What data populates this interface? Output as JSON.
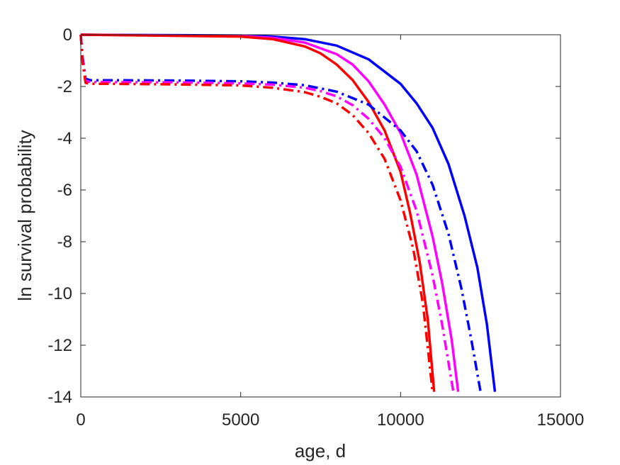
{
  "chart_data": {
    "type": "line",
    "title": "",
    "xlabel": "age, d",
    "ylabel": "ln survival probability",
    "xlim": [
      0,
      15000
    ],
    "ylim": [
      -14,
      0
    ],
    "xticks": [
      0,
      5000,
      10000,
      15000
    ],
    "yticks": [
      -14,
      -12,
      -10,
      -8,
      -6,
      -4,
      -2,
      0
    ],
    "grid": false,
    "legend": false,
    "series": [
      {
        "color": "#0000ff",
        "style": "solid",
        "x": [
          0,
          5000,
          6000,
          7000,
          8000,
          9000,
          10000,
          10500,
          11000,
          11500,
          12000,
          12400,
          12700,
          12950
        ],
        "y": [
          0,
          -0.03,
          -0.07,
          -0.17,
          -0.42,
          -0.95,
          -1.9,
          -2.65,
          -3.6,
          -5.0,
          -7.0,
          -9.0,
          -11.2,
          -13.8
        ]
      },
      {
        "color": "#ff00ff",
        "style": "solid",
        "x": [
          0,
          5000,
          6000,
          7000,
          8000,
          8500,
          9000,
          9500,
          10000,
          10500,
          11000,
          11300,
          11600,
          11800
        ],
        "y": [
          0,
          -0.05,
          -0.12,
          -0.3,
          -0.75,
          -1.15,
          -1.8,
          -2.7,
          -3.8,
          -5.4,
          -7.8,
          -9.6,
          -11.8,
          -13.8
        ]
      },
      {
        "color": "#ff0000",
        "style": "solid",
        "x": [
          0,
          5000,
          6000,
          7000,
          7500,
          8000,
          8500,
          9000,
          9500,
          10000,
          10300,
          10600,
          10850,
          11050
        ],
        "y": [
          0,
          -0.07,
          -0.17,
          -0.45,
          -0.72,
          -1.15,
          -1.75,
          -2.6,
          -3.7,
          -5.3,
          -6.9,
          -8.8,
          -11.0,
          -13.8
        ]
      },
      {
        "color": "#0000ff",
        "style": "dashdot",
        "x": [
          0,
          60,
          150,
          300,
          1000,
          3000,
          5000,
          6000,
          7000,
          8000,
          9000,
          10000,
          10500,
          11000,
          11500,
          11900,
          12200,
          12500
        ],
        "y": [
          0,
          -0.9,
          -1.7,
          -1.76,
          -1.76,
          -1.77,
          -1.8,
          -1.85,
          -1.95,
          -2.2,
          -2.7,
          -3.7,
          -4.5,
          -5.8,
          -7.7,
          -9.8,
          -11.7,
          -13.8
        ]
      },
      {
        "color": "#ff00ff",
        "style": "dashdot",
        "x": [
          0,
          60,
          150,
          300,
          1000,
          3000,
          5000,
          6000,
          7000,
          7500,
          8000,
          8500,
          9000,
          9500,
          10000,
          10500,
          11000,
          11300,
          11650
        ],
        "y": [
          0,
          -1.0,
          -1.78,
          -1.83,
          -1.83,
          -1.84,
          -1.88,
          -1.93,
          -2.05,
          -2.18,
          -2.38,
          -2.72,
          -3.25,
          -4.0,
          -5.1,
          -6.8,
          -9.3,
          -11.2,
          -13.8
        ]
      },
      {
        "color": "#ff0000",
        "style": "dashdot",
        "x": [
          0,
          60,
          150,
          300,
          1000,
          3000,
          5000,
          6000,
          7000,
          7500,
          8000,
          8500,
          9000,
          9500,
          10000,
          10400,
          10700,
          11000
        ],
        "y": [
          0,
          -1.1,
          -1.86,
          -1.9,
          -1.9,
          -1.92,
          -1.96,
          -2.05,
          -2.22,
          -2.4,
          -2.65,
          -3.1,
          -3.8,
          -4.8,
          -6.4,
          -8.3,
          -10.4,
          -13.8
        ]
      }
    ]
  }
}
